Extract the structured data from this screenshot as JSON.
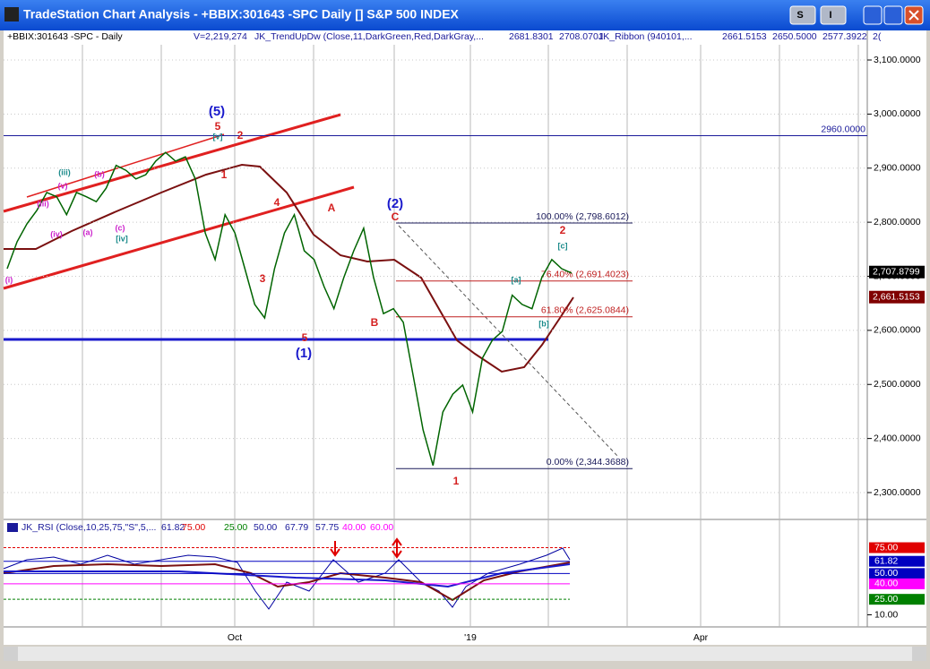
{
  "window": {
    "title": "TradeStation Chart Analysis - +BBIX:301643 -SPC Daily [] S&P 500 INDEX",
    "buttons": [
      "S",
      "I"
    ]
  },
  "header": {
    "items": [
      "+BBIX:301643 -SPC - Daily",
      "V=2,219,274",
      "JK_TrendUpDw (Close,11,DarkGreen,Red,DarkGray,...",
      "2681.8301",
      "2708.0701",
      "JK_Ribbon (940101,...",
      "2661.5153",
      "2650.5000",
      "2577.3922",
      "2("
    ]
  },
  "price_chart": {
    "ylim": [
      2300,
      3100
    ],
    "yticks": [
      {
        "value": 3100,
        "label": "3,100.0000"
      },
      {
        "value": 3000,
        "label": "3,000.0000"
      },
      {
        "value": 2900,
        "label": "2,900.0000"
      },
      {
        "value": 2800,
        "label": "2,800.0000"
      },
      {
        "value": 2700,
        "label": "2,700.0000"
      },
      {
        "value": 2600,
        "label": "2,600.0000"
      },
      {
        "value": 2500,
        "label": "2,500.0000"
      },
      {
        "value": 2400,
        "label": "2,400.0000"
      },
      {
        "value": 2300,
        "label": "2,300.0000"
      }
    ],
    "close": [
      2714,
      2764,
      2797,
      2822,
      2855,
      2847,
      2814,
      2855,
      2847,
      2838,
      2863,
      2905,
      2896,
      2880,
      2888,
      2913,
      2929,
      2913,
      2921,
      2880,
      2780,
      2731,
      2814,
      2780,
      2714,
      2648,
      2623,
      2714,
      2780,
      2814,
      2747,
      2731,
      2681,
      2640,
      2698,
      2747,
      2789,
      2698,
      2631,
      2640,
      2615,
      2516,
      2416,
      2350,
      2449,
      2482,
      2499,
      2449,
      2549,
      2582,
      2598,
      2665,
      2648,
      2640,
      2698,
      2731,
      2714,
      2706
    ],
    "color": "#006400",
    "level_line": {
      "value": 2960,
      "label": "2960.0000"
    },
    "fib_levels": [
      {
        "value": 2798.6012,
        "label": "100.00% (2,798.6012)"
      },
      {
        "value": 2691.4023,
        "label": "76.40% (2,691.4023)"
      },
      {
        "value": 2625.0844,
        "label": "61.80% (2,625.0844)"
      },
      {
        "value": 2344.3688,
        "label": "0.00% (2,344.3688)"
      }
    ],
    "badges": [
      {
        "value": 2707.8799,
        "label": "2,707.8799",
        "color": "#000000"
      },
      {
        "value": 2661.5153,
        "label": "2,661.5153",
        "color": "#800000"
      }
    ],
    "wave_labels": [
      {
        "text": "(5)",
        "color": "#1a1acc"
      },
      {
        "text": "5",
        "color": "#d42020"
      },
      {
        "text": "[v]",
        "color": "#1a8a8a"
      },
      {
        "text": "2",
        "color": "#d42020"
      },
      {
        "text": "1",
        "color": "#d42020"
      },
      {
        "text": "4",
        "color": "#d42020"
      },
      {
        "text": "3",
        "color": "#d42020"
      },
      {
        "text": "A",
        "color": "#d42020"
      },
      {
        "text": "B",
        "color": "#d42020"
      },
      {
        "text": "5",
        "color": "#d42020"
      },
      {
        "text": "(1)",
        "color": "#1a1acc"
      },
      {
        "text": "(2)",
        "color": "#1a1acc"
      },
      {
        "text": "C",
        "color": "#d42020"
      },
      {
        "text": "1",
        "color": "#d42020"
      },
      {
        "text": "2",
        "color": "#d42020"
      },
      {
        "text": "[c]",
        "color": "#1a8a8a"
      },
      {
        "text": "[a]",
        "color": "#1a8a8a"
      },
      {
        "text": "[b]",
        "color": "#1a8a8a"
      },
      {
        "text": "(iii)",
        "color": "#1a8a8a"
      },
      {
        "text": "(b)",
        "color": "#cc22cc"
      },
      {
        "text": "(v)",
        "color": "#cc22cc"
      },
      {
        "text": "(iii)",
        "color": "#cc22cc"
      },
      {
        "text": "(a)",
        "color": "#cc22cc"
      },
      {
        "text": "(iv)",
        "color": "#cc22cc"
      },
      {
        "text": "(c)",
        "color": "#cc22cc"
      },
      {
        "text": "[iv]",
        "color": "#1a8a8a"
      },
      {
        "text": "(i)",
        "color": "#cc22cc"
      }
    ]
  },
  "rsi_panel": {
    "header": [
      "JK_RSI (Close,10,25,75,\"S\",5,...",
      "61.82",
      "75.00",
      "25.00",
      "50.00",
      "67.79",
      "57.75",
      "40.00",
      "60.00"
    ],
    "ylim": [
      0,
      85
    ],
    "levels": [
      {
        "value": 75,
        "label": "75.00",
        "color": "#e00000"
      },
      {
        "value": 61.82,
        "label": "61.82",
        "color": "#0000c0"
      },
      {
        "value": 50,
        "label": "50.00",
        "color": "#0000c0"
      },
      {
        "value": 40,
        "label": "40.00",
        "color": "#ff00ff"
      },
      {
        "value": 25,
        "label": "25.00",
        "color": "#008000"
      }
    ],
    "yticks": [
      {
        "value": 10,
        "label": "10.00"
      }
    ]
  },
  "x_axis": {
    "labels": [
      "Oct",
      "'19",
      "Apr"
    ]
  }
}
